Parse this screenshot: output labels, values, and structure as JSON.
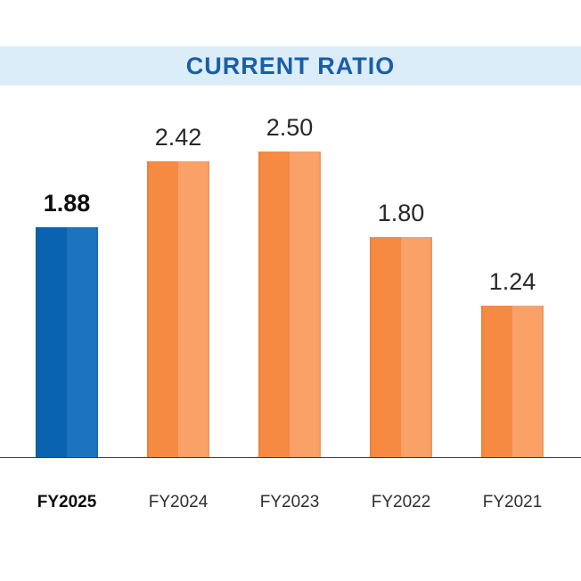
{
  "title": "CURRENT RATIO",
  "colors": {
    "band_bg": "#DBEDF9",
    "title_text": "#1A5DA8",
    "blue_dark": "#0A63B0",
    "blue_light": "#1C73BE",
    "orange_dark": "#F68A43",
    "orange_light": "#F9A167",
    "axis_line": "#3F3F3F",
    "value_text": "#282828",
    "highlight_text": "#0D0D0D"
  },
  "chart_data": {
    "type": "bar",
    "title": "CURRENT RATIO",
    "categories": [
      "FY2025",
      "FY2024",
      "FY2023",
      "FY2022",
      "FY2021"
    ],
    "values": [
      1.88,
      2.42,
      2.5,
      1.8,
      1.24
    ],
    "value_labels": [
      "1.88",
      "2.42",
      "2.50",
      "1.80",
      "1.24"
    ],
    "highlight_index": 0,
    "highlight_series_name": "FY2025",
    "xlabel": "",
    "ylabel": "",
    "ylim": [
      0,
      2.75
    ],
    "grid": false,
    "legend": false,
    "bar_colors": {
      "highlight": [
        "#0A63B0",
        "#1C73BE"
      ],
      "default": [
        "#F68A43",
        "#F9A167"
      ]
    }
  }
}
